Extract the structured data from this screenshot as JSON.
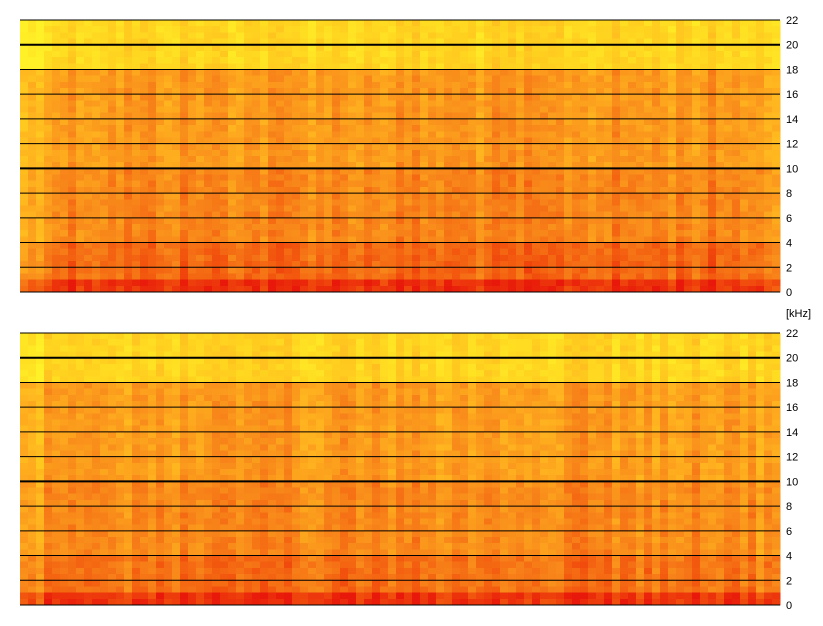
{
  "chart_data": [
    {
      "type": "heatmap",
      "title": "",
      "xlabel": "",
      "ylabel": "[kHz]",
      "yticks": [
        0,
        2,
        4,
        6,
        8,
        10,
        12,
        14,
        16,
        18,
        20,
        22
      ],
      "ylim": [
        0,
        22
      ],
      "grid": true,
      "emphasized_gridlines": [
        10,
        20
      ],
      "colormap": [
        "#e8180a",
        "#f2530d",
        "#f8871a",
        "#ffb31f",
        "#ffd21f",
        "#fff027"
      ],
      "intensity_by_band": [
        {
          "band_khz": [
            0,
            1
          ],
          "level": 0.08
        },
        {
          "band_khz": [
            1,
            4
          ],
          "level": 0.28
        },
        {
          "band_khz": [
            4,
            10
          ],
          "level": 0.4
        },
        {
          "band_khz": [
            10,
            18
          ],
          "level": 0.48
        },
        {
          "band_khz": [
            18,
            22
          ],
          "level": 0.82
        }
      ]
    },
    {
      "type": "heatmap",
      "title": "",
      "xlabel": "",
      "ylabel": "[kHz]",
      "yticks": [
        0,
        2,
        4,
        6,
        8,
        10,
        12,
        14,
        16,
        18,
        20,
        22
      ],
      "ylim": [
        0,
        22
      ],
      "grid": true,
      "emphasized_gridlines": [
        10,
        20
      ],
      "colormap": [
        "#e8180a",
        "#f2530d",
        "#f8871a",
        "#ffb31f",
        "#ffd21f",
        "#fff027"
      ],
      "intensity_by_band": [
        {
          "band_khz": [
            0,
            1
          ],
          "level": 0.1
        },
        {
          "band_khz": [
            1,
            4
          ],
          "level": 0.32
        },
        {
          "band_khz": [
            4,
            10
          ],
          "level": 0.42
        },
        {
          "band_khz": [
            10,
            18
          ],
          "level": 0.5
        },
        {
          "band_khz": [
            18,
            22
          ],
          "level": 0.82
        }
      ]
    }
  ],
  "unit_label": "[kHz]"
}
